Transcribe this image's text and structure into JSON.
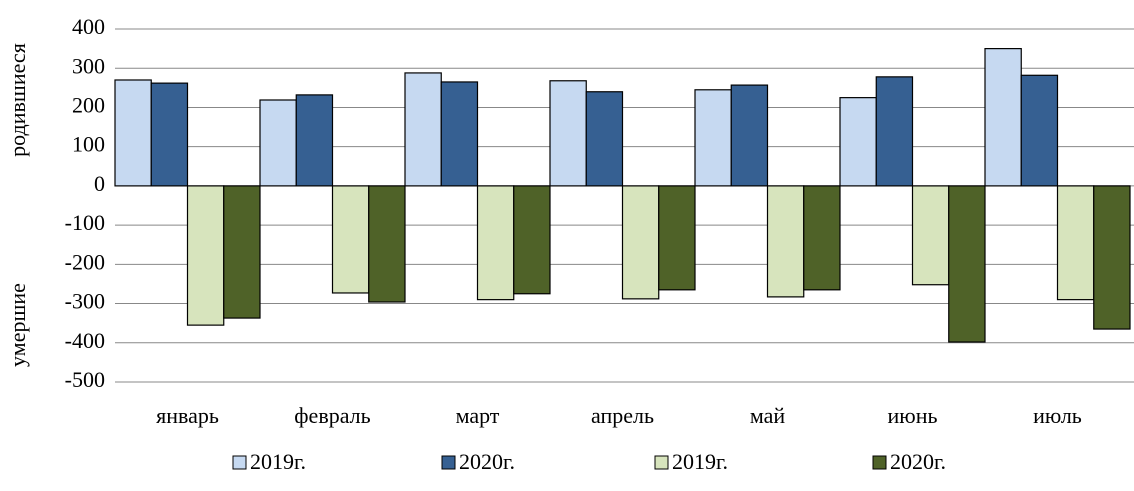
{
  "chart_data": {
    "type": "bar",
    "y_axis_labels": [
      "родившиеся",
      "умершие"
    ],
    "categories": [
      "январь",
      "февраль",
      "март",
      "апрель",
      "май",
      "июнь",
      "июль"
    ],
    "series": [
      {
        "name": "2019г.",
        "color": "#c6d9f1",
        "values": [
          270,
          219,
          288,
          268,
          245,
          225,
          350
        ]
      },
      {
        "name": "2020г.",
        "color": "#366092",
        "values": [
          262,
          232,
          265,
          240,
          257,
          278,
          282
        ]
      },
      {
        "name": "2019г.",
        "color": "#d7e4bd",
        "values": [
          -355,
          -273,
          -290,
          -288,
          -283,
          -252,
          -290
        ]
      },
      {
        "name": "2020г.",
        "color": "#4f6228",
        "values": [
          -337,
          -296,
          -275,
          -265,
          -265,
          -398,
          -365
        ]
      }
    ],
    "ylim": [
      -500,
      400
    ],
    "yticks": [
      -500,
      -400,
      -300,
      -200,
      -100,
      0,
      100,
      200,
      300,
      400
    ],
    "grid": true,
    "legend": "bottom"
  }
}
